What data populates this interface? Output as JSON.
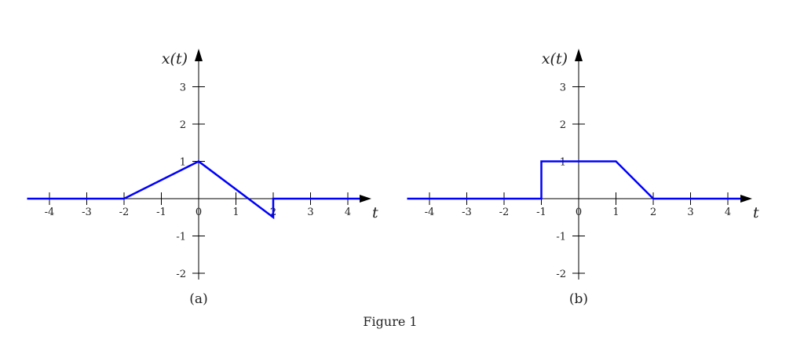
{
  "caption": "Figure 1",
  "chart_data": [
    {
      "type": "line",
      "panel_label": "(a)",
      "xlabel": "t",
      "ylabel": "x(t)",
      "xticks": [
        -4,
        -3,
        -2,
        -1,
        0,
        1,
        2,
        3,
        4
      ],
      "yticks": [
        -2,
        -1,
        1,
        2,
        3
      ],
      "xlim": [
        -4.6,
        4.5
      ],
      "ylim": [
        -2.2,
        4
      ],
      "grid": false,
      "line_color": "#0000ff",
      "points": [
        [
          -4.6,
          0
        ],
        [
          -2,
          0
        ],
        [
          0,
          1
        ],
        [
          2,
          -0.5
        ],
        [
          2,
          0
        ],
        [
          4.4,
          0
        ]
      ],
      "description": "Zero until t=-2, rises linearly to 1 at t=0, falls linearly to -0.5 at t=2, jumps back to 0 at t=2, zero after."
    },
    {
      "type": "line",
      "panel_label": "(b)",
      "xlabel": "t",
      "ylabel": "x(t)",
      "xticks": [
        -4,
        -3,
        -2,
        -1,
        0,
        1,
        2,
        3,
        4
      ],
      "yticks": [
        -2,
        -1,
        1,
        2,
        3
      ],
      "xlim": [
        -4.6,
        4.5
      ],
      "ylim": [
        -2.2,
        4
      ],
      "grid": false,
      "line_color": "#0000ff",
      "points": [
        [
          -4.6,
          0
        ],
        [
          -1,
          0
        ],
        [
          -1,
          1
        ],
        [
          1,
          1
        ],
        [
          2,
          0
        ],
        [
          4.4,
          0
        ]
      ],
      "description": "Zero until t=-1, jumps to 1 at t=-1, constant 1 until t=1, falls linearly to 0 at t=2, zero after."
    }
  ]
}
